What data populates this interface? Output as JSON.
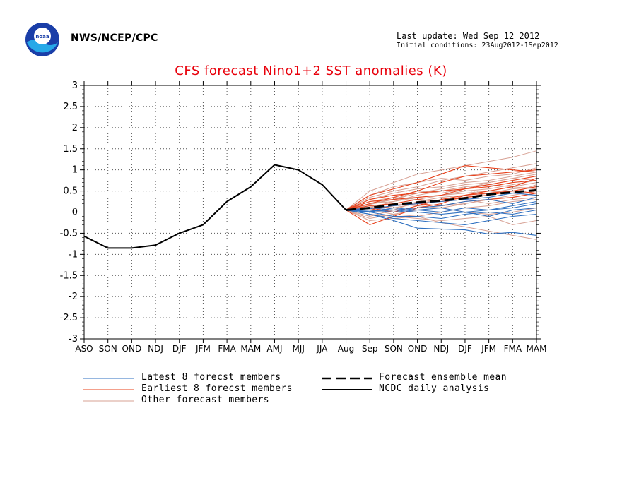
{
  "header": {
    "agency": "NWS/NCEP/CPC",
    "last_update": "Last update: Wed Sep 12 2012",
    "initial_conditions": "Initial conditions: 23Aug2012-1Sep2012",
    "logo": {
      "icon": "noaa-logo-icon",
      "text": "noaa"
    }
  },
  "legend": {
    "latest": "Latest 8 forecst members",
    "earliest": "Earliest 8 forecst members",
    "other": "Other forecast members",
    "mean": "Forecast ensemble mean",
    "ncdc": "NCDC daily analysis"
  },
  "colors": {
    "title": "#e8000b",
    "latest": "#2d6fc0",
    "earliest": "#e8401a",
    "other": "#d7a093",
    "analysis": "#000000"
  },
  "chart_data": {
    "type": "line",
    "title": "CFS forecast Nino1+2 SST anomalies (K)",
    "categories": [
      "ASO",
      "SON",
      "OND",
      "NDJ",
      "DJF",
      "JFM",
      "FMA",
      "MAM",
      "AMJ",
      "MJJ",
      "JJA",
      "Aug",
      "Sep",
      "SON",
      "OND",
      "NDJ",
      "DJF",
      "JFM",
      "FMA",
      "MAM"
    ],
    "ylim": [
      -3,
      3
    ],
    "yticks": [
      "3",
      "2.5",
      "2",
      "1.5",
      "1",
      "0.5",
      "0",
      "-0.5",
      "-1",
      "-1.5",
      "-2",
      "-2.5",
      "-3"
    ],
    "grid": true,
    "zero_line": true,
    "legend_position": "bottom",
    "ncdc_analysis": [
      -0.57,
      -0.85,
      -0.85,
      -0.78,
      -0.5,
      -0.3,
      0.25,
      0.6,
      1.12,
      1.0,
      0.65,
      0.05
    ],
    "ensemble_mean": [
      0.05,
      0.1,
      0.18,
      0.23,
      0.27,
      0.33,
      0.42,
      0.47,
      0.52
    ],
    "latest_members": [
      [
        0.05,
        -0.05,
        -0.2,
        -0.38,
        -0.4,
        -0.42,
        -0.52,
        -0.48,
        -0.55
      ],
      [
        0.05,
        0.0,
        -0.1,
        -0.1,
        -0.15,
        -0.05,
        0.0,
        -0.05,
        0.05
      ],
      [
        0.05,
        0.05,
        0.0,
        0.05,
        0.0,
        0.1,
        0.05,
        0.1,
        0.2
      ],
      [
        0.05,
        0.1,
        0.05,
        0.1,
        0.15,
        0.25,
        0.3,
        0.2,
        0.35
      ],
      [
        0.05,
        0.0,
        0.1,
        0.05,
        0.1,
        0.0,
        -0.1,
        0.05,
        0.1
      ],
      [
        0.05,
        -0.05,
        -0.15,
        -0.2,
        -0.25,
        -0.3,
        -0.2,
        -0.1,
        -0.05
      ],
      [
        0.05,
        0.08,
        0.15,
        0.2,
        0.25,
        0.3,
        0.35,
        0.45,
        0.4
      ],
      [
        0.05,
        0.02,
        0.05,
        0.0,
        -0.05,
        0.0,
        0.05,
        0.15,
        0.25
      ]
    ],
    "earliest_members": [
      [
        0.05,
        0.4,
        0.55,
        0.7,
        0.9,
        1.1,
        1.05,
        1.0,
        0.95
      ],
      [
        0.05,
        0.2,
        0.35,
        0.5,
        0.7,
        0.85,
        0.9,
        0.95,
        1.0
      ],
      [
        0.05,
        -0.3,
        -0.1,
        0.1,
        0.2,
        0.4,
        0.5,
        0.6,
        0.8
      ],
      [
        0.05,
        0.3,
        0.4,
        0.45,
        0.5,
        0.55,
        0.6,
        0.7,
        0.75
      ],
      [
        0.05,
        0.1,
        0.0,
        0.15,
        0.3,
        0.4,
        0.45,
        0.5,
        0.45
      ],
      [
        0.05,
        0.25,
        0.3,
        0.35,
        0.4,
        0.55,
        0.65,
        0.75,
        0.85
      ],
      [
        0.05,
        0.15,
        0.2,
        0.3,
        0.25,
        0.35,
        0.4,
        0.5,
        0.6
      ],
      [
        0.05,
        0.05,
        0.15,
        0.2,
        0.15,
        0.25,
        0.3,
        0.35,
        0.45
      ]
    ],
    "other_members": [
      [
        0.05,
        0.5,
        0.7,
        0.9,
        1.0,
        1.1,
        1.2,
        1.3,
        1.45
      ],
      [
        0.05,
        0.35,
        0.5,
        0.6,
        0.75,
        0.85,
        0.95,
        1.05,
        1.15
      ],
      [
        0.05,
        0.2,
        0.3,
        0.45,
        0.55,
        0.65,
        0.7,
        0.8,
        0.9
      ],
      [
        0.05,
        0.1,
        0.25,
        0.35,
        0.4,
        0.5,
        0.55,
        0.65,
        0.75
      ],
      [
        0.05,
        0.0,
        0.1,
        0.2,
        0.3,
        0.35,
        0.45,
        0.55,
        0.6
      ],
      [
        0.05,
        -0.1,
        0.05,
        0.1,
        0.15,
        0.2,
        0.3,
        0.35,
        0.45
      ],
      [
        0.05,
        -0.2,
        -0.15,
        -0.1,
        0.0,
        0.1,
        0.15,
        0.25,
        0.3
      ],
      [
        0.05,
        0.15,
        0.1,
        0.2,
        0.25,
        0.3,
        0.2,
        0.3,
        0.35
      ],
      [
        0.05,
        0.25,
        0.35,
        0.3,
        0.4,
        0.45,
        0.5,
        0.6,
        0.7
      ],
      [
        0.05,
        -0.05,
        -0.1,
        -0.15,
        -0.2,
        -0.15,
        -0.1,
        -0.3,
        -0.2
      ],
      [
        0.05,
        0.05,
        -0.05,
        -0.1,
        -0.25,
        -0.35,
        -0.45,
        -0.55,
        -0.65
      ],
      [
        0.05,
        0.3,
        0.45,
        0.55,
        0.6,
        0.7,
        0.75,
        0.85,
        0.95
      ],
      [
        0.05,
        0.12,
        0.2,
        0.15,
        0.1,
        0.2,
        0.3,
        0.4,
        0.5
      ],
      [
        0.05,
        -0.15,
        -0.05,
        0.05,
        0.1,
        0.0,
        -0.05,
        0.0,
        0.1
      ],
      [
        0.05,
        0.4,
        0.6,
        0.7,
        0.8,
        0.75,
        0.85,
        0.9,
        1.05
      ],
      [
        0.05,
        0.2,
        0.25,
        0.4,
        0.5,
        0.6,
        0.65,
        0.6,
        0.55
      ],
      [
        0.05,
        0.1,
        0.05,
        0.25,
        0.35,
        0.4,
        0.5,
        0.45,
        0.65
      ],
      [
        0.05,
        0.18,
        0.3,
        0.5,
        0.45,
        0.55,
        0.7,
        0.8,
        0.75
      ]
    ]
  }
}
